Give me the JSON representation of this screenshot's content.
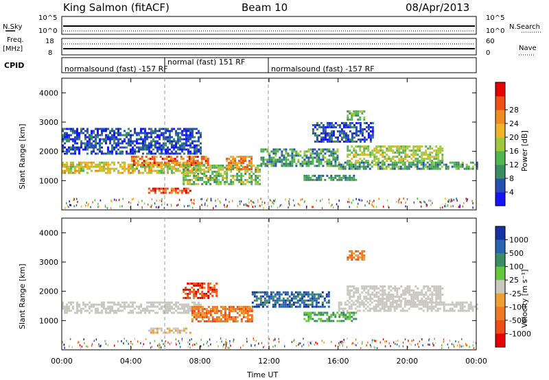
{
  "header": {
    "station": "King Salmon (fitACF)",
    "beam": "Beam 10",
    "date": "08/Apr/2013"
  },
  "strips": {
    "nsky_label": "N.Sky",
    "nsearch_label": "N.Search",
    "left_ticks": [
      "10^5",
      "10^0"
    ],
    "right_ticks": [
      "10^5",
      "10^0"
    ],
    "freq_label": "Freq.",
    "freq_unit": "[MHz]",
    "freq_ticks": [
      "18",
      "8"
    ],
    "nave_label": "Nave",
    "nave_ticks": [
      "60",
      "0"
    ],
    "cpid_label": "CPID",
    "cpid_segments": [
      {
        "label": "normalsound (fast) -157 RF",
        "start_hour": 0,
        "end_hour": 6.0
      },
      {
        "label": "normal (fast) 151 RF",
        "start_hour": 6.0,
        "end_hour": 12.0
      },
      {
        "label": "normalsound (fast) -157 RF",
        "start_hour": 12.0,
        "end_hour": 24.0
      }
    ]
  },
  "axes": {
    "ylabel": "Slant Range [km]",
    "xlabel": "Time UT",
    "x_ticks": [
      "00:00",
      "04:00",
      "08:00",
      "12:00",
      "16:00",
      "20:00",
      "00:00"
    ],
    "y_ticks": [
      "1000",
      "2000",
      "3000",
      "4000"
    ]
  },
  "colorbars": {
    "power": {
      "label": "Power [dB]",
      "ticks": [
        "4",
        "8",
        "12",
        "16",
        "20",
        "24",
        "28"
      ],
      "colors": [
        "#1414ff",
        "#2850b4",
        "#3c8c64",
        "#50b450",
        "#a0c83c",
        "#f0b428",
        "#f08c1e",
        "#f05014",
        "#e60000"
      ]
    },
    "velocity": {
      "label": "Velocity [m s⁻¹]",
      "ticks": [
        "1000",
        "500",
        "100",
        "25",
        "-25",
        "-100",
        "-500",
        "-1000"
      ],
      "colors": [
        "#1432a0",
        "#2864b4",
        "#3c8c64",
        "#64c83c",
        "#c8c8c0",
        "#f0a030",
        "#f07820",
        "#f04c14",
        "#e60000"
      ]
    }
  },
  "chart_data": [
    {
      "type": "heatmap",
      "name_panel": "power",
      "x_range_hours": [
        0,
        24
      ],
      "ylim": [
        0,
        4500
      ],
      "bands": [
        {
          "t0": 0.0,
          "t1": 8.0,
          "r0": 1250,
          "r1": 1650,
          "c0": 3,
          "c1": 6
        },
        {
          "t0": 4.0,
          "t1": 8.5,
          "r0": 1550,
          "r1": 1850,
          "c0": 5,
          "c1": 8
        },
        {
          "t0": 5.0,
          "t1": 7.5,
          "r0": 600,
          "r1": 760,
          "c0": 6,
          "c1": 8
        },
        {
          "t0": 7.0,
          "t1": 11.5,
          "r0": 900,
          "r1": 1550,
          "c0": 2,
          "c1": 5
        },
        {
          "t0": 9.5,
          "t1": 11.0,
          "r0": 1400,
          "r1": 1850,
          "c0": 5,
          "c1": 7
        },
        {
          "t0": 11.5,
          "t1": 16.0,
          "r0": 1500,
          "r1": 2100,
          "c0": 1,
          "c1": 4
        },
        {
          "t0": 14.0,
          "t1": 17.0,
          "r0": 1000,
          "r1": 1200,
          "c0": 1,
          "c1": 3
        },
        {
          "t0": 16.0,
          "t1": 24.0,
          "r0": 1400,
          "r1": 1650,
          "c0": 1,
          "c1": 4
        },
        {
          "t0": 16.5,
          "t1": 22.0,
          "r0": 1700,
          "r1": 2200,
          "c0": 3,
          "c1": 5
        },
        {
          "t0": 0.0,
          "t1": 8.0,
          "r0": 1900,
          "r1": 2800,
          "c0": 0,
          "c1": 2
        },
        {
          "t0": 14.5,
          "t1": 18.0,
          "r0": 2300,
          "r1": 3000,
          "c0": 0,
          "c1": 2
        },
        {
          "t0": 16.5,
          "t1": 17.5,
          "r0": 3100,
          "r1": 3400,
          "c0": 2,
          "c1": 4
        }
      ]
    },
    {
      "type": "heatmap",
      "name_panel": "velocity",
      "x_range_hours": [
        0,
        24
      ],
      "ylim": [
        0,
        4500
      ],
      "bands": [
        {
          "t0": 0.0,
          "t1": 8.0,
          "r0": 1250,
          "r1": 1650,
          "c0": 4,
          "c1": 4
        },
        {
          "t0": 5.0,
          "t1": 7.5,
          "r0": 600,
          "r1": 760,
          "c0": 4,
          "c1": 5
        },
        {
          "t0": 7.5,
          "t1": 11.0,
          "r0": 1000,
          "r1": 1500,
          "c0": 5,
          "c1": 7
        },
        {
          "t0": 7.0,
          "t1": 9.0,
          "r0": 1800,
          "r1": 2300,
          "c0": 6,
          "c1": 8
        },
        {
          "t0": 11.0,
          "t1": 15.5,
          "r0": 1500,
          "r1": 2000,
          "c0": 0,
          "c1": 2
        },
        {
          "t0": 14.0,
          "t1": 17.0,
          "r0": 1000,
          "r1": 1300,
          "c0": 2,
          "c1": 3
        },
        {
          "t0": 16.0,
          "t1": 24.0,
          "r0": 1350,
          "r1": 1650,
          "c0": 4,
          "c1": 4
        },
        {
          "t0": 16.5,
          "t1": 22.0,
          "r0": 1700,
          "r1": 2200,
          "c0": 4,
          "c1": 4
        },
        {
          "t0": 16.5,
          "t1": 17.5,
          "r0": 3100,
          "r1": 3400,
          "c0": 5,
          "c1": 7
        }
      ]
    }
  ]
}
